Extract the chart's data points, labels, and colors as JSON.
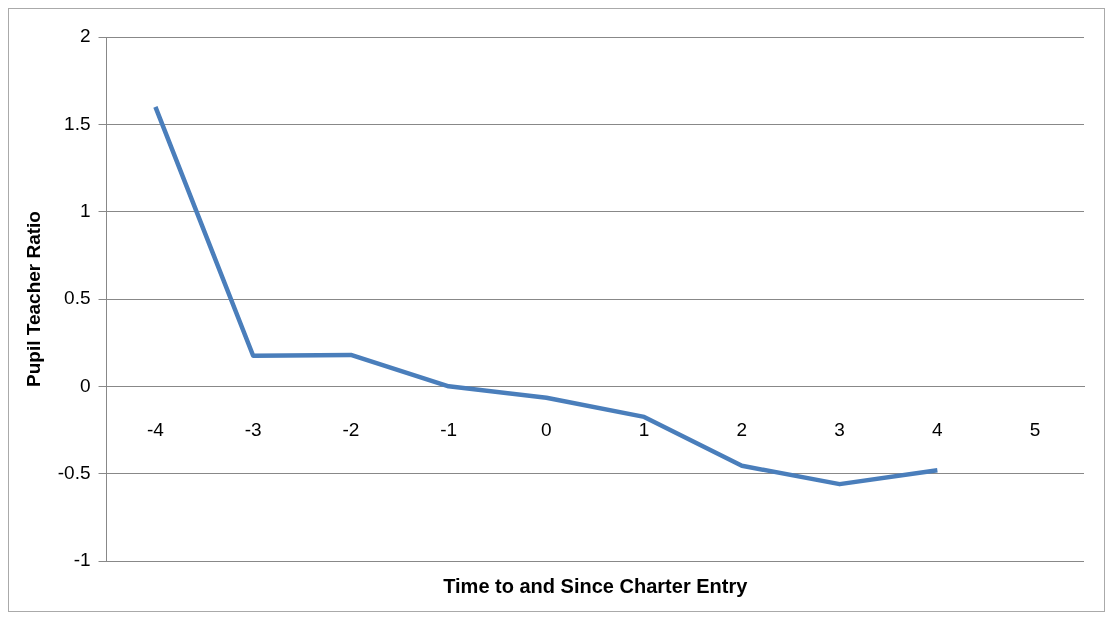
{
  "chart_data": {
    "type": "line",
    "xlabel": "Time to and Since Charter Entry",
    "ylabel": "Pupil Teacher Ratio",
    "categories": [
      "-4",
      "-3",
      "-2",
      "-1",
      "0",
      "1",
      "2",
      "3",
      "4",
      "5"
    ],
    "series": [
      {
        "color": "#4a7ebb",
        "values": [
          1.6,
          0.175,
          0.18,
          0.0,
          -0.065,
          -0.175,
          -0.455,
          -0.56,
          -0.48,
          null
        ]
      }
    ],
    "ylim": [
      -1,
      2
    ],
    "yticks": [
      -1,
      -0.5,
      0,
      0.5,
      1,
      1.5,
      2
    ],
    "grid": "y",
    "marker": "none",
    "line_style": "solid"
  }
}
